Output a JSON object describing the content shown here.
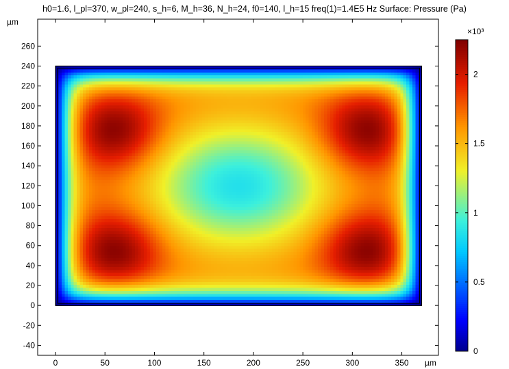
{
  "header": {
    "title": "h0=1.6, l_pl=370, w_pl=240, s_h=6, M_h=36, N_h=24, f0=140, l_h=15 freq(1)=1.4E5 Hz  Surface: Pressure (Pa)"
  },
  "chart_data": {
    "type": "heatmap",
    "title": "h0=1.6, l_pl=370, w_pl=240, s_h=6, M_h=36, N_h=24, f0=140, l_h=15 freq(1)=1.4E5 Hz  Surface: Pressure (Pa)",
    "xlabel": "µm",
    "ylabel": "µm",
    "xlim": [
      -18,
      387
    ],
    "ylim": [
      -50,
      287
    ],
    "x_ticks": [
      0,
      50,
      100,
      150,
      200,
      250,
      300,
      350
    ],
    "y_ticks": [
      -40,
      -20,
      0,
      20,
      40,
      60,
      80,
      100,
      120,
      140,
      160,
      180,
      200,
      220,
      240,
      260
    ],
    "plate": {
      "x_min": 0,
      "x_max": 370,
      "y_min": 0,
      "y_max": 240
    },
    "field": {
      "description_values": "surface pressure, zero on plate edge, maxima near four corners, local minimum at center",
      "min_value": 0,
      "max_value": 2250,
      "corner_peak_value": 2250,
      "center_value": 900,
      "peak_locations": [
        [
          60,
          175
        ],
        [
          315,
          175
        ],
        [
          60,
          55
        ],
        [
          315,
          55
        ]
      ],
      "center_location": [
        185,
        120
      ]
    },
    "colorbar": {
      "multiplier_label": "×10³",
      "ticks": [
        0,
        0.5,
        1,
        1.5,
        2
      ],
      "range": [
        0,
        2.25
      ],
      "colormap": "rainbow"
    }
  }
}
